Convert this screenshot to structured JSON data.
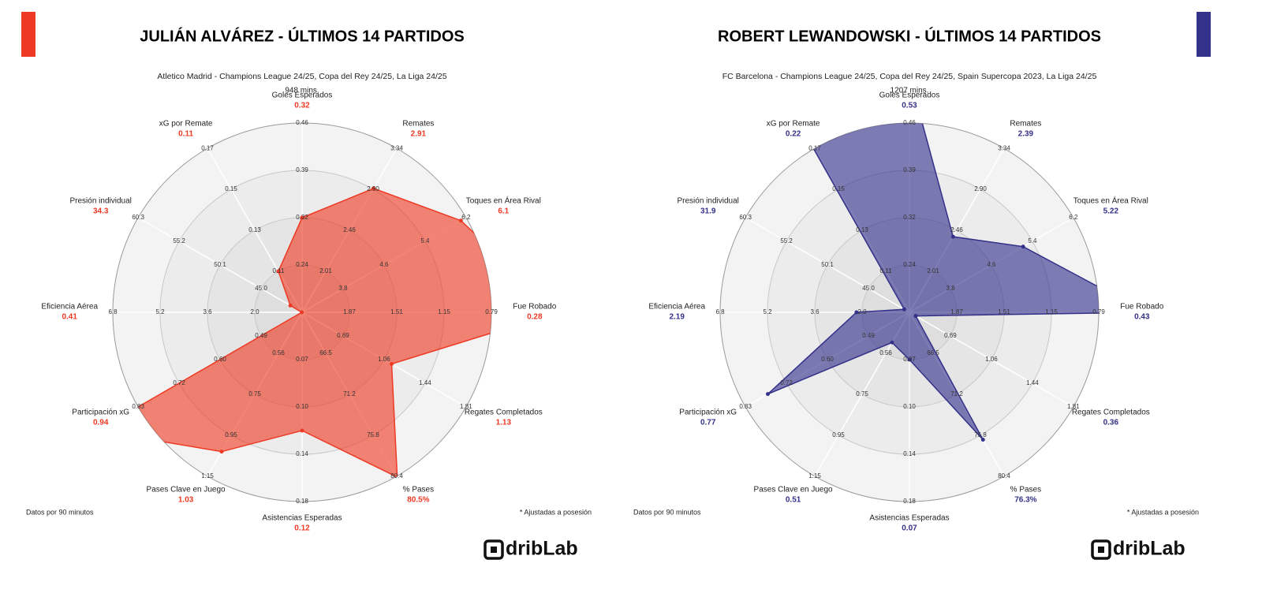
{
  "chart_data": [
    {
      "type": "radar",
      "title": "JULIÁN ALVÁREZ - ÚLTIMOS 14 PARTIDOS",
      "subtitle": "Atletico Madrid - Champions League 24/25, Copa del Rey 24/25, La Liga 24/25",
      "minutes": "948 mins.",
      "color": "#ee3a24",
      "axes": [
        {
          "name": "Goles Esperados",
          "ticks": [
            0.24,
            0.32,
            0.39,
            0.46
          ],
          "rlim": [
            0.16,
            0.46
          ]
        },
        {
          "name": "Remates",
          "ticks": [
            2.01,
            2.46,
            {
              "value": 2.9,
              "label": "2.90"
            },
            3.34
          ],
          "rlim": [
            1.57,
            3.34
          ]
        },
        {
          "name": "Toques en Área Rival",
          "ticks": [
            3.8,
            4.6,
            5.4,
            6.2
          ],
          "rlim": [
            3.0,
            6.2
          ]
        },
        {
          "name": "Fue Robado",
          "ticks": [
            1.87,
            1.51,
            1.15,
            0.79
          ],
          "rlim": [
            2.23,
            0.79
          ]
        },
        {
          "name": "Regates Completados",
          "ticks": [
            0.69,
            1.06,
            1.44,
            1.81
          ],
          "rlim": [
            0.3,
            1.81
          ]
        },
        {
          "name": "% Pases",
          "ticks": [
            66.5,
            71.2,
            75.8,
            80.4
          ],
          "rlim": [
            61.8,
            80.4
          ]
        },
        {
          "name": "Asistencias Esperadas",
          "ticks": [
            0.07,
            {
              "value": 0.1,
              "label": "0.10"
            },
            0.14,
            0.18
          ],
          "rlim": [
            0.04,
            0.18
          ]
        },
        {
          "name": "Pases Clave en Juego",
          "ticks": [
            0.56,
            0.75,
            0.95,
            1.15
          ],
          "rlim": [
            0.37,
            1.15
          ]
        },
        {
          "name": "Participación xG",
          "ticks": [
            0.49,
            {
              "value": 0.6,
              "label": "0.60"
            },
            0.72,
            0.83
          ],
          "rlim": [
            0.38,
            0.83
          ]
        },
        {
          "name": "Eficiencia Aérea",
          "ticks": [
            {
              "value": 2,
              "label": "2.0"
            },
            3.6,
            5.2,
            6.8
          ],
          "rlim": [
            0.4,
            6.8
          ]
        },
        {
          "name": "Presión individual",
          "ticks": [
            {
              "value": 45,
              "label": "45.0"
            },
            50.1,
            55.2,
            60.3
          ],
          "rlim": [
            30,
            60.3
          ]
        },
        {
          "name": "xG por Remate",
          "ticks": [
            0.11,
            0.13,
            0.15,
            0.17
          ],
          "rlim": [
            0.09,
            0.17
          ]
        }
      ],
      "values": [
        0.32,
        2.91,
        6.1,
        0.28,
        1.13,
        80.5,
        0.12,
        1.03,
        0.94,
        0.41,
        34.3,
        0.11
      ],
      "value_labels": [
        "0.32",
        "2.91",
        "6.1",
        "0.28",
        "1.13",
        "80.5%",
        "0.12",
        "1.03",
        "0.94",
        "0.41",
        "34.3",
        "0.11"
      ],
      "footnote_left": "Datos por 90 minutos",
      "footnote_right": "* Ajustadas a posesión",
      "logo": "dribLab"
    },
    {
      "type": "radar",
      "title": "ROBERT LEWANDOWSKI - ÚLTIMOS  14 PARTIDOS",
      "subtitle": "FC Barcelona - Champions League 24/25, Copa del Rey 24/25, Spain Supercopa 2023, La Liga 24/25",
      "minutes": "1207 mins.",
      "color": "#34318a",
      "axes": [
        {
          "name": "Goles Esperados",
          "ticks": [
            0.24,
            0.32,
            0.39,
            0.46
          ],
          "rlim": [
            0.16,
            0.46
          ]
        },
        {
          "name": "Remates",
          "ticks": [
            2.01,
            2.46,
            {
              "value": 2.9,
              "label": "2.90"
            },
            3.34
          ],
          "rlim": [
            1.57,
            3.34
          ]
        },
        {
          "name": "Toques en Área Rival",
          "ticks": [
            3.8,
            4.6,
            5.4,
            6.2
          ],
          "rlim": [
            3.0,
            6.2
          ]
        },
        {
          "name": "Fue Robado",
          "ticks": [
            1.87,
            1.51,
            1.15,
            0.79
          ],
          "rlim": [
            2.23,
            0.79
          ]
        },
        {
          "name": "Regates Completados",
          "ticks": [
            0.69,
            1.06,
            1.44,
            1.81
          ],
          "rlim": [
            0.3,
            1.81
          ]
        },
        {
          "name": "% Pases",
          "ticks": [
            66.5,
            71.2,
            75.8,
            80.4
          ],
          "rlim": [
            61.8,
            80.4
          ]
        },
        {
          "name": "Asistencias Esperadas",
          "ticks": [
            0.07,
            {
              "value": 0.1,
              "label": "0.10"
            },
            0.14,
            0.18
          ],
          "rlim": [
            0.04,
            0.18
          ]
        },
        {
          "name": "Pases Clave en Juego",
          "ticks": [
            0.56,
            0.75,
            0.95,
            1.15
          ],
          "rlim": [
            0.37,
            1.15
          ]
        },
        {
          "name": "Participación xG",
          "ticks": [
            0.49,
            {
              "value": 0.6,
              "label": "0.60"
            },
            0.72,
            0.83
          ],
          "rlim": [
            0.38,
            0.83
          ]
        },
        {
          "name": "Eficiencia Aérea",
          "ticks": [
            {
              "value": 2,
              "label": "2.0"
            },
            3.6,
            5.2,
            6.8
          ],
          "rlim": [
            0.4,
            6.8
          ]
        },
        {
          "name": "Presión individual",
          "ticks": [
            {
              "value": 45,
              "label": "45.0"
            },
            50.1,
            55.2,
            60.3
          ],
          "rlim": [
            30,
            60.3
          ]
        },
        {
          "name": "xG por Remate",
          "ticks": [
            0.11,
            0.13,
            0.15,
            0.17
          ],
          "rlim": [
            0.09,
            0.17
          ]
        }
      ],
      "values": [
        0.53,
        2.39,
        5.22,
        0.43,
        0.36,
        76.3,
        0.07,
        0.51,
        0.77,
        2.19,
        31.9,
        0.22
      ],
      "value_labels": [
        "0.53",
        "2.39",
        "5.22",
        "0.43",
        "0.36",
        "76.3%",
        "0.07",
        "0.51",
        "0.77",
        "2.19",
        "31.9",
        "0.22"
      ],
      "footnote_left": "Datos por 90 minutos",
      "footnote_right": "* Ajustadas a posesión",
      "logo": "dribLab"
    }
  ]
}
